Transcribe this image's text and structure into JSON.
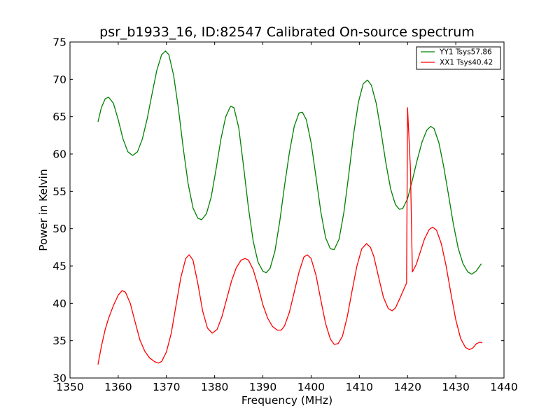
{
  "chart_data": {
    "type": "line",
    "title": "psr_b1933_16, ID:82547 Calibrated On-source spectrum",
    "xlabel": "Frequency (MHz)",
    "ylabel": "Power in Kelvin",
    "xlim": [
      1350,
      1440
    ],
    "ylim": [
      30,
      75
    ],
    "x_ticks": [
      "1350",
      "1360",
      "1370",
      "1380",
      "1390",
      "1400",
      "1410",
      "1420",
      "1430",
      "1440"
    ],
    "y_ticks": [
      "30",
      "35",
      "40",
      "45",
      "50",
      "55",
      "60",
      "65",
      "70",
      "75"
    ],
    "grid": false,
    "legend_position": "top-right",
    "series": [
      {
        "name": "YY1 Tsys57.86",
        "color": "#008000",
        "points": [
          [
            1355.8,
            64.3
          ],
          [
            1356.5,
            66.2
          ],
          [
            1357.3,
            67.4
          ],
          [
            1358.0,
            67.6
          ],
          [
            1359.0,
            66.8
          ],
          [
            1360.0,
            64.6
          ],
          [
            1361.0,
            62.0
          ],
          [
            1362.0,
            60.3
          ],
          [
            1363.0,
            59.8
          ],
          [
            1364.0,
            60.3
          ],
          [
            1365.0,
            62.0
          ],
          [
            1366.0,
            64.7
          ],
          [
            1367.0,
            68.0
          ],
          [
            1368.0,
            71.2
          ],
          [
            1369.0,
            73.3
          ],
          [
            1369.8,
            73.8
          ],
          [
            1370.5,
            73.3
          ],
          [
            1371.5,
            70.5
          ],
          [
            1372.5,
            66.0
          ],
          [
            1373.5,
            60.7
          ],
          [
            1374.5,
            56.0
          ],
          [
            1375.5,
            52.8
          ],
          [
            1376.5,
            51.4
          ],
          [
            1377.3,
            51.2
          ],
          [
            1378.3,
            52.0
          ],
          [
            1379.3,
            54.3
          ],
          [
            1380.3,
            58.0
          ],
          [
            1381.3,
            62.0
          ],
          [
            1382.3,
            65.0
          ],
          [
            1383.3,
            66.4
          ],
          [
            1384.0,
            66.2
          ],
          [
            1385.0,
            63.5
          ],
          [
            1386.0,
            58.3
          ],
          [
            1387.0,
            52.8
          ],
          [
            1388.0,
            48.3
          ],
          [
            1389.0,
            45.5
          ],
          [
            1390.0,
            44.3
          ],
          [
            1390.7,
            44.1
          ],
          [
            1391.5,
            44.7
          ],
          [
            1392.5,
            47.0
          ],
          [
            1393.5,
            51.0
          ],
          [
            1394.5,
            55.8
          ],
          [
            1395.5,
            60.2
          ],
          [
            1396.5,
            63.7
          ],
          [
            1397.5,
            65.5
          ],
          [
            1398.2,
            65.6
          ],
          [
            1399.0,
            64.6
          ],
          [
            1400.0,
            61.5
          ],
          [
            1401.0,
            57.0
          ],
          [
            1402.0,
            52.3
          ],
          [
            1403.0,
            48.8
          ],
          [
            1404.0,
            47.3
          ],
          [
            1404.8,
            47.2
          ],
          [
            1405.8,
            48.6
          ],
          [
            1406.8,
            52.2
          ],
          [
            1407.8,
            57.2
          ],
          [
            1408.8,
            62.6
          ],
          [
            1409.8,
            66.9
          ],
          [
            1410.8,
            69.4
          ],
          [
            1411.7,
            69.9
          ],
          [
            1412.5,
            69.2
          ],
          [
            1413.5,
            66.8
          ],
          [
            1414.5,
            63.0
          ],
          [
            1415.5,
            58.8
          ],
          [
            1416.5,
            55.3
          ],
          [
            1417.5,
            53.2
          ],
          [
            1418.3,
            52.6
          ],
          [
            1419.0,
            52.7
          ],
          [
            1420.0,
            54.0
          ],
          [
            1421.0,
            56.5
          ],
          [
            1422.0,
            59.2
          ],
          [
            1423.0,
            61.6
          ],
          [
            1424.0,
            63.2
          ],
          [
            1424.8,
            63.7
          ],
          [
            1425.5,
            63.4
          ],
          [
            1426.5,
            61.5
          ],
          [
            1427.5,
            58.3
          ],
          [
            1428.5,
            54.5
          ],
          [
            1429.5,
            50.6
          ],
          [
            1430.5,
            47.4
          ],
          [
            1431.5,
            45.3
          ],
          [
            1432.5,
            44.2
          ],
          [
            1433.3,
            43.9
          ],
          [
            1434.2,
            44.3
          ],
          [
            1435.3,
            45.3
          ]
        ]
      },
      {
        "name": "XX1 Tsys40.42",
        "color": "#ff0000",
        "points": [
          [
            1355.8,
            31.8
          ],
          [
            1356.5,
            34.2
          ],
          [
            1357.3,
            36.5
          ],
          [
            1358.0,
            38.0
          ],
          [
            1359.0,
            39.7
          ],
          [
            1360.0,
            41.1
          ],
          [
            1360.8,
            41.7
          ],
          [
            1361.5,
            41.5
          ],
          [
            1362.5,
            40.0
          ],
          [
            1363.5,
            37.5
          ],
          [
            1364.5,
            35.1
          ],
          [
            1365.5,
            33.6
          ],
          [
            1366.5,
            32.7
          ],
          [
            1367.5,
            32.2
          ],
          [
            1368.3,
            32.0
          ],
          [
            1369.0,
            32.2
          ],
          [
            1370.0,
            33.5
          ],
          [
            1371.0,
            36.0
          ],
          [
            1372.0,
            39.8
          ],
          [
            1373.0,
            43.5
          ],
          [
            1374.0,
            46.0
          ],
          [
            1374.7,
            46.5
          ],
          [
            1375.5,
            45.8
          ],
          [
            1376.5,
            42.7
          ],
          [
            1377.5,
            39.0
          ],
          [
            1378.5,
            36.7
          ],
          [
            1379.5,
            36.0
          ],
          [
            1380.5,
            36.5
          ],
          [
            1381.5,
            38.2
          ],
          [
            1382.5,
            40.6
          ],
          [
            1383.5,
            43.0
          ],
          [
            1384.5,
            44.8
          ],
          [
            1385.5,
            45.8
          ],
          [
            1386.3,
            46.0
          ],
          [
            1387.0,
            45.8
          ],
          [
            1388.0,
            44.5
          ],
          [
            1389.0,
            42.3
          ],
          [
            1390.0,
            39.8
          ],
          [
            1391.0,
            38.0
          ],
          [
            1392.0,
            36.9
          ],
          [
            1393.0,
            36.4
          ],
          [
            1393.8,
            36.4
          ],
          [
            1394.5,
            37.0
          ],
          [
            1395.5,
            38.8
          ],
          [
            1396.5,
            41.5
          ],
          [
            1397.5,
            44.2
          ],
          [
            1398.5,
            46.2
          ],
          [
            1399.2,
            46.5
          ],
          [
            1400.0,
            46.0
          ],
          [
            1401.0,
            43.8
          ],
          [
            1402.0,
            40.5
          ],
          [
            1403.0,
            37.3
          ],
          [
            1404.0,
            35.2
          ],
          [
            1404.8,
            34.5
          ],
          [
            1405.6,
            34.6
          ],
          [
            1406.5,
            35.6
          ],
          [
            1407.5,
            38.2
          ],
          [
            1408.5,
            41.7
          ],
          [
            1409.5,
            45.0
          ],
          [
            1410.5,
            47.3
          ],
          [
            1411.5,
            48.0
          ],
          [
            1412.3,
            47.5
          ],
          [
            1413.0,
            46.3
          ],
          [
            1414.0,
            43.5
          ],
          [
            1415.0,
            40.8
          ],
          [
            1416.0,
            39.3
          ],
          [
            1416.8,
            39.0
          ],
          [
            1417.5,
            39.4
          ],
          [
            1418.5,
            40.8
          ],
          [
            1419.5,
            42.3
          ],
          [
            1419.8,
            42.7
          ],
          [
            1420.0,
            66.2
          ],
          [
            1420.6,
            58.0
          ],
          [
            1421.0,
            44.2
          ],
          [
            1421.8,
            45.2
          ],
          [
            1422.5,
            46.6
          ],
          [
            1423.5,
            48.6
          ],
          [
            1424.5,
            49.9
          ],
          [
            1425.2,
            50.2
          ],
          [
            1426.0,
            49.8
          ],
          [
            1427.0,
            48.0
          ],
          [
            1428.0,
            45.0
          ],
          [
            1429.0,
            41.3
          ],
          [
            1430.0,
            37.8
          ],
          [
            1431.0,
            35.3
          ],
          [
            1432.0,
            34.1
          ],
          [
            1432.8,
            33.8
          ],
          [
            1433.5,
            34.0
          ],
          [
            1434.3,
            34.6
          ],
          [
            1435.0,
            34.8
          ],
          [
            1435.5,
            34.7
          ]
        ]
      }
    ]
  }
}
